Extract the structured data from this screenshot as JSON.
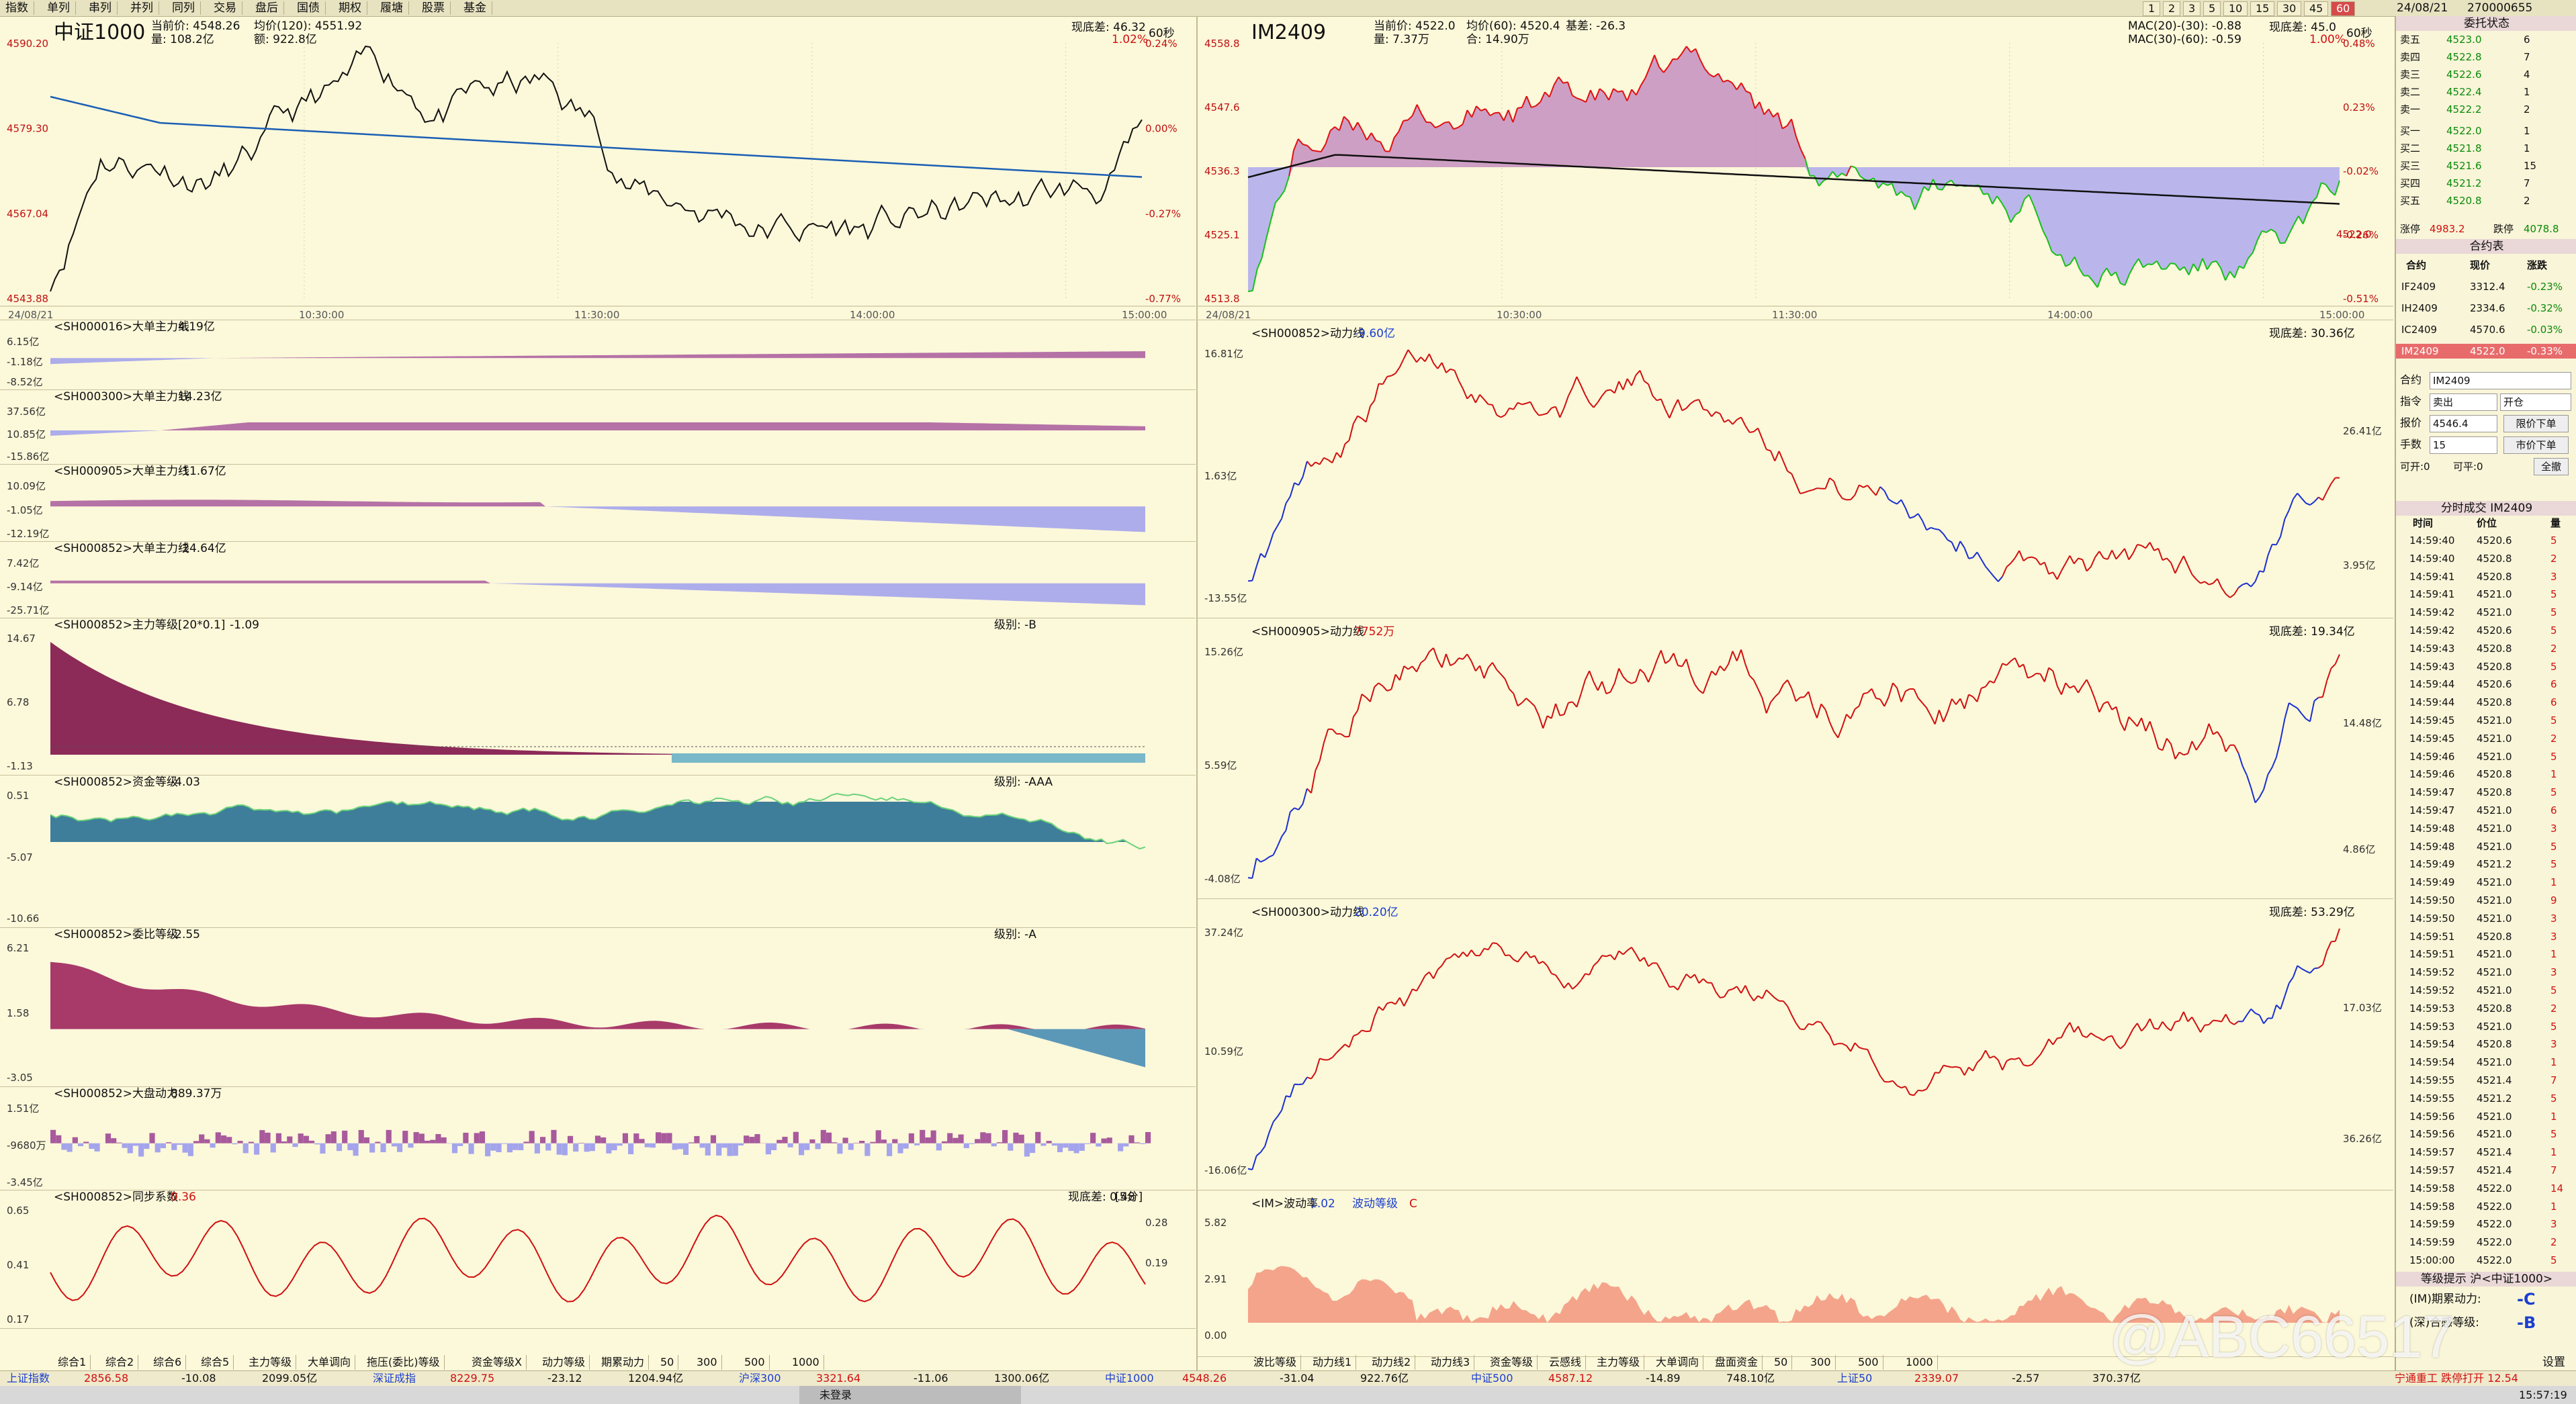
{
  "top_tabs": [
    "指数",
    "单列",
    "串列",
    "并列",
    "同列",
    "交易",
    "盘后",
    "国债",
    "期权",
    "履塘",
    "股票",
    "基金"
  ],
  "period_buttons": [
    "1",
    "2",
    "3",
    "5",
    "10",
    "15",
    "30",
    "45",
    "60"
  ],
  "date_label": "24/08/21",
  "account": "270000655",
  "left_main": {
    "title": "中证1000",
    "cur_label": "当前价: 4548.26",
    "avg_label": "均价(120): 4551.92",
    "vol_label": "量: 108.2亿",
    "amt_label": "额: 922.8亿",
    "diff_label": "现底差: 46.32",
    "pct_label": "1.02%",
    "per_label": "60秒",
    "yaxis": [
      "4590.20",
      "4579.30",
      "4567.04",
      "4543.88"
    ],
    "ryaxis": [
      "0.24%",
      "0.00%",
      "-0.27%",
      "-0.77%"
    ],
    "xaxis": [
      "24/08/21",
      "10:30:00",
      "11:30:00",
      "14:00:00",
      "15:00:00"
    ]
  },
  "right_main": {
    "title": "IM2409",
    "cur_label": "当前价: 4522.0",
    "avg_label": "均价(60): 4520.4",
    "basis_label": "基差: -26.3",
    "vol_label": "量: 7.37万",
    "amt_label": "合: 14.90万",
    "mac1": "MAC(20)-(30): -0.88",
    "mac2": "MAC(30)-(60): -0.59",
    "diff_label": "现底差: 45.0",
    "pct_label": "1.00%",
    "per_label": "60秒",
    "yaxis": [
      "4558.8",
      "4547.6",
      "4536.3",
      "4525.1",
      "4513.8"
    ],
    "ryaxis": [
      "0.48%",
      "0.23%",
      "-0.02%",
      "-0.26%",
      "-0.51%"
    ],
    "price_tag": "4522.0",
    "xaxis": [
      "24/08/21",
      "10:30:00",
      "11:30:00",
      "14:00:00",
      "15:00:00"
    ]
  },
  "left_subs": [
    {
      "label": "<SH000016>大单主力线",
      "val": "4.19亿",
      "axis": [
        "6.15亿",
        "-1.18亿",
        "-8.52亿"
      ]
    },
    {
      "label": "<SH000300>大单主力线",
      "val": "14.23亿",
      "axis": [
        "37.56亿",
        "10.85亿",
        "-15.86亿"
      ]
    },
    {
      "label": "<SH000905>大单主力线",
      "val": "-11.67亿",
      "axis": [
        "10.09亿",
        "-1.05亿",
        "-12.19亿"
      ]
    },
    {
      "label": "<SH000852>大单主力线",
      "val": "-24.64亿",
      "axis": [
        "7.42亿",
        "-9.14亿",
        "-25.71亿"
      ]
    },
    {
      "label": "<SH000852>主力等级[20*0.1]",
      "val": "-1.09",
      "level": "级别: -B",
      "axis": [
        "14.67",
        "6.78",
        "-1.13"
      ]
    },
    {
      "label": "<SH000852>资金等级",
      "val": "-4.03",
      "level": "级别: -AAA",
      "axis": [
        "0.51",
        "-5.07",
        "-10.66"
      ]
    },
    {
      "label": "<SH000852>委比等级",
      "val": "-2.55",
      "level": "级别: -A",
      "axis": [
        "6.21",
        "1.58",
        "-3.05"
      ]
    },
    {
      "label": "<SH000852>大盘动力",
      "val": "889.37万",
      "axis": [
        "1.51亿",
        "-9680万",
        "-3.45亿"
      ]
    },
    {
      "label": "<SH000852>同步系数",
      "val": "0.36",
      "diff": "现底差: 0.48",
      "period": "[5分]",
      "axis": [
        "0.65",
        "0.41",
        "0.17"
      ],
      "raxis": [
        "0.28",
        "0.19"
      ]
    }
  ],
  "right_subs": [
    {
      "label": "<SH000852>动力线",
      "val": "-9.60亿",
      "diff": "现底差: 30.36亿",
      "axis": [
        "16.81亿",
        "1.63亿",
        "-13.55亿"
      ],
      "raxis": [
        "26.41亿",
        "3.95亿"
      ]
    },
    {
      "label": "<SH000905>动力线",
      "val": "7752万",
      "diff": "现底差: 19.34亿",
      "axis": [
        "15.26亿",
        "5.59亿",
        "-4.08亿"
      ],
      "raxis": [
        "14.48亿",
        "4.86亿"
      ]
    },
    {
      "label": "<SH000300>动力线",
      "val": "20.20亿",
      "diff": "现底差: 53.29亿",
      "axis": [
        "37.24亿",
        "10.59亿",
        "-16.06亿"
      ],
      "raxis": [
        "17.03亿",
        "36.26亿"
      ]
    },
    {
      "label": "<IM>波动率",
      "val": "1.02",
      "level_label": "波动等级",
      "level": "C",
      "axis": [
        "5.82",
        "2.91",
        "0.00"
      ]
    }
  ],
  "order_book": {
    "title": "委托状态",
    "asks": [
      [
        "卖五",
        "4523.0",
        "6"
      ],
      [
        "卖四",
        "4522.8",
        "7"
      ],
      [
        "卖三",
        "4522.6",
        "4"
      ],
      [
        "卖二",
        "4522.4",
        "1"
      ],
      [
        "卖一",
        "4522.2",
        "2"
      ]
    ],
    "bids": [
      [
        "买一",
        "4522.0",
        "1"
      ],
      [
        "买二",
        "4521.8",
        "1"
      ],
      [
        "买三",
        "4521.6",
        "15"
      ],
      [
        "买四",
        "4521.2",
        "7"
      ],
      [
        "买五",
        "4520.8",
        "2"
      ]
    ],
    "limit_up_label": "涨停",
    "limit_up": "4983.2",
    "limit_down_label": "跌停",
    "limit_down": "4078.8"
  },
  "contracts": {
    "title": "合约表",
    "headers": [
      "合约",
      "现价",
      "涨跌"
    ],
    "rows": [
      [
        "IF2409",
        "3312.4",
        "-0.23%"
      ],
      [
        "IH2409",
        "2334.6",
        "-0.32%"
      ],
      [
        "IC2409",
        "4570.6",
        "-0.03%"
      ],
      [
        "IM2409",
        "4522.0",
        "-0.33%"
      ]
    ]
  },
  "order_form": {
    "contract_label": "合约",
    "contract": "IM2409",
    "direction_label": "指令",
    "direction": "卖出",
    "offset": "开仓",
    "price_label": "报价",
    "price": "4546.4",
    "price_btn": "限价下单",
    "qty_label": "手数",
    "qty": "15",
    "market_btn": "市价下单",
    "avail_open": "可开:0",
    "avail_close": "可平:0",
    "cancel_all": "全撤"
  },
  "ticks": {
    "title": "分时成交 IM2409",
    "headers": [
      "时间",
      "价位",
      "量"
    ],
    "rows": [
      [
        "14:59:40",
        "4520.6",
        "5"
      ],
      [
        "14:59:40",
        "4520.8",
        "2"
      ],
      [
        "14:59:41",
        "4520.8",
        "3"
      ],
      [
        "14:59:41",
        "4521.0",
        "5"
      ],
      [
        "14:59:42",
        "4521.0",
        "5"
      ],
      [
        "14:59:42",
        "4520.6",
        "5"
      ],
      [
        "14:59:43",
        "4520.8",
        "2"
      ],
      [
        "14:59:43",
        "4520.8",
        "5"
      ],
      [
        "14:59:44",
        "4520.6",
        "6"
      ],
      [
        "14:59:44",
        "4520.8",
        "6"
      ],
      [
        "14:59:45",
        "4521.0",
        "5"
      ],
      [
        "14:59:45",
        "4521.0",
        "2"
      ],
      [
        "14:59:46",
        "4521.0",
        "5"
      ],
      [
        "14:59:46",
        "4520.8",
        "1"
      ],
      [
        "14:59:47",
        "4520.8",
        "5"
      ],
      [
        "14:59:47",
        "4521.0",
        "6"
      ],
      [
        "14:59:48",
        "4521.0",
        "3"
      ],
      [
        "14:59:48",
        "4521.0",
        "5"
      ],
      [
        "14:59:49",
        "4521.2",
        "5"
      ],
      [
        "14:59:49",
        "4521.0",
        "1"
      ],
      [
        "14:59:50",
        "4521.0",
        "9"
      ],
      [
        "14:59:50",
        "4521.0",
        "3"
      ],
      [
        "14:59:51",
        "4520.8",
        "3"
      ],
      [
        "14:59:51",
        "4521.0",
        "1"
      ],
      [
        "14:59:52",
        "4521.0",
        "3"
      ],
      [
        "14:59:52",
        "4521.0",
        "5"
      ],
      [
        "14:59:53",
        "4520.8",
        "2"
      ],
      [
        "14:59:53",
        "4521.0",
        "5"
      ],
      [
        "14:59:54",
        "4520.8",
        "3"
      ],
      [
        "14:59:54",
        "4521.0",
        "1"
      ],
      [
        "14:59:55",
        "4521.4",
        "7"
      ],
      [
        "14:59:55",
        "4521.2",
        "5"
      ],
      [
        "14:59:56",
        "4521.0",
        "1"
      ],
      [
        "14:59:56",
        "4521.0",
        "5"
      ],
      [
        "14:59:57",
        "4521.4",
        "1"
      ],
      [
        "14:59:57",
        "4521.4",
        "7"
      ],
      [
        "14:59:58",
        "4522.0",
        "14"
      ],
      [
        "14:59:58",
        "4522.0",
        "1"
      ],
      [
        "14:59:59",
        "4522.0",
        "3"
      ],
      [
        "14:59:59",
        "4522.0",
        "2"
      ],
      [
        "15:00:00",
        "4522.0",
        "5"
      ]
    ]
  },
  "grade": {
    "title": "等级提示 沪<中证1000>",
    "row1_label": "(IM)期累动力:",
    "row1_val": "-C",
    "row2_label": "(深)合感等级:",
    "row2_val": "-B"
  },
  "left_bottom_tabs": [
    "综合1",
    "综合2",
    "综合6",
    "综合5",
    "主力等级",
    "大单调向",
    "拖压(委比)等级",
    "资金等级X",
    "动力等级",
    "期累动力",
    "50",
    "300",
    "500",
    "1000"
  ],
  "right_bottom_tabs": [
    "波比等级",
    "动力线1",
    "动力线2",
    "动力线3",
    "资金等级",
    "云感线",
    "主力等级",
    "大单调向",
    "盘面资金",
    "50",
    "300",
    "500",
    "1000"
  ],
  "status": [
    {
      "t": "上证指数",
      "c": "blue"
    },
    {
      "t": "2856.58",
      "c": "red"
    },
    {
      "t": "-10.08",
      "c": ""
    },
    {
      "t": "2099.05亿",
      "c": ""
    },
    {
      "t": "深证成指",
      "c": "blue"
    },
    {
      "t": "8229.75",
      "c": "red"
    },
    {
      "t": "-23.12",
      "c": ""
    },
    {
      "t": "1204.94亿",
      "c": ""
    },
    {
      "t": "沪深300",
      "c": "blue"
    },
    {
      "t": "3321.64",
      "c": "red"
    },
    {
      "t": "-11.06",
      "c": ""
    },
    {
      "t": "1300.06亿",
      "c": ""
    },
    {
      "t": "中证1000",
      "c": "blue"
    },
    {
      "t": "4548.26",
      "c": "red"
    },
    {
      "t": "-31.04",
      "c": ""
    },
    {
      "t": "922.76亿",
      "c": ""
    },
    {
      "t": "中证500",
      "c": "blue"
    },
    {
      "t": "4587.12",
      "c": "red"
    },
    {
      "t": "-14.89",
      "c": ""
    },
    {
      "t": "748.10亿",
      "c": ""
    },
    {
      "t": "上证50",
      "c": "blue"
    },
    {
      "t": "2339.07",
      "c": "red"
    },
    {
      "t": "-2.57",
      "c": ""
    },
    {
      "t": "370.37亿",
      "c": ""
    }
  ],
  "status_right": "宁通重工 跌停打开 12.54",
  "clock": "15:57:19",
  "settings": "设置",
  "taskbar_item": "未登录",
  "watermark": "@ABC66517"
}
